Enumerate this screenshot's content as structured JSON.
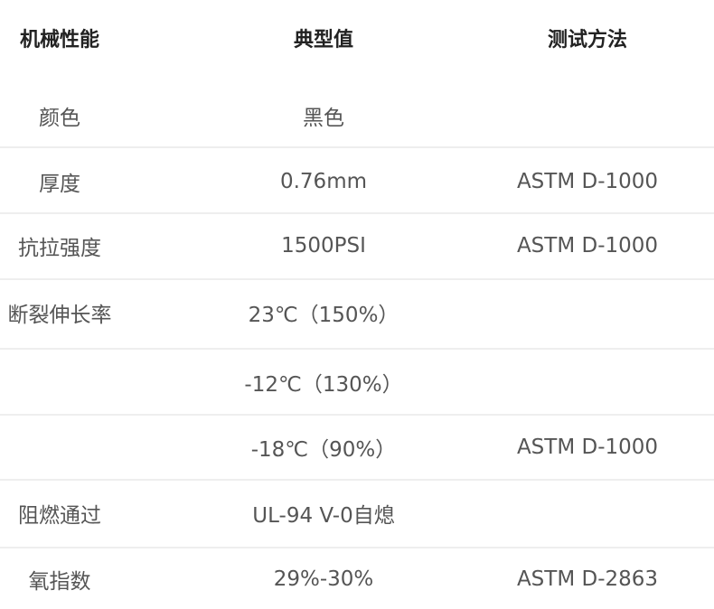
{
  "header": {
    "col1": "机械性能",
    "col2": "典型值",
    "col3": "测试方法"
  },
  "rows": [
    {
      "property": "颜色",
      "value": "黑色",
      "method": ""
    },
    {
      "property": "厚度",
      "value": "0.76mm",
      "method": "ASTM D-1000"
    },
    {
      "property": "抗拉强度",
      "value": "1500PSI",
      "method": "ASTM D-1000"
    },
    {
      "property": "断裂伸长率",
      "value": "23℃（150%）",
      "method": ""
    },
    {
      "property": "",
      "value": "-12℃（130%）",
      "method": ""
    },
    {
      "property": "",
      "value": "-18℃（90%）",
      "method": "ASTM D-1000"
    },
    {
      "property": "阻燃通过",
      "value": "UL-94 V-0自熄",
      "method": ""
    },
    {
      "property": "氧指数",
      "value": "29%-30%",
      "method": "ASTM D-2863"
    }
  ]
}
